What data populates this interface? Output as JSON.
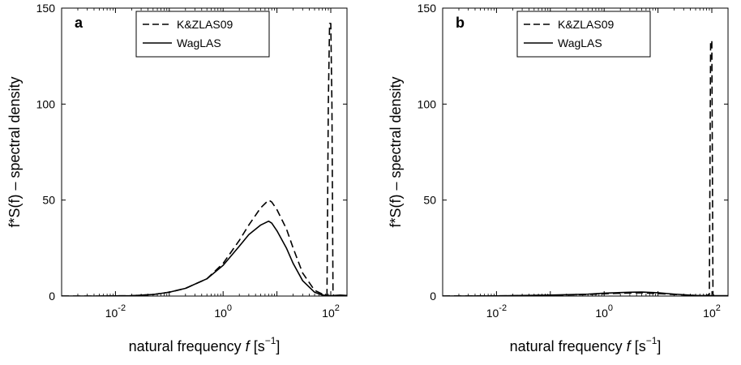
{
  "chart_data": [
    {
      "type": "line",
      "panel_label": "a",
      "x_scale": "log",
      "xlim": [
        0.001,
        200
      ],
      "ylim": [
        0,
        150
      ],
      "xticks": [
        0.01,
        1,
        100
      ],
      "xtick_labels": [
        {
          "base": "10",
          "exp": "-2"
        },
        {
          "base": "10",
          "exp": "0"
        },
        {
          "base": "10",
          "exp": "2"
        }
      ],
      "yticks": [
        0,
        50,
        100,
        150
      ],
      "ytick_labels": [
        "0",
        "50",
        "100",
        "150"
      ],
      "xlabel": {
        "main": "natural frequency ",
        "var": "f",
        "unit_open": " [s",
        "unit_exp": "−1",
        "unit_close": "]"
      },
      "ylabel": "f*S(f) – spectral density",
      "legend": {
        "position": "top-center",
        "entries": [
          "K&ZLAS09",
          "WagLAS"
        ]
      },
      "series": [
        {
          "name": "K&ZLAS09",
          "style": "dashed",
          "x": [
            0.001,
            0.005,
            0.02,
            0.05,
            0.1,
            0.2,
            0.5,
            1,
            2,
            3,
            5,
            7,
            8,
            10,
            15,
            20,
            30,
            50,
            70,
            85,
            90,
            95,
            100,
            105,
            110,
            115,
            130,
            200
          ],
          "y": [
            0,
            0,
            0.2,
            0.8,
            2,
            4,
            9,
            17,
            29,
            37,
            46,
            50,
            49,
            45,
            35,
            25,
            12,
            3,
            1,
            0.5,
            100,
            142,
            142,
            100,
            1,
            0,
            0,
            0
          ]
        },
        {
          "name": "WagLAS",
          "style": "solid",
          "x": [
            0.001,
            0.005,
            0.02,
            0.05,
            0.1,
            0.2,
            0.5,
            1,
            2,
            3,
            5,
            7,
            8,
            10,
            15,
            20,
            30,
            50,
            70,
            100,
            150,
            200
          ],
          "y": [
            0,
            0,
            0.2,
            0.8,
            2,
            4,
            9,
            16,
            26,
            32,
            37,
            39,
            38,
            34,
            25,
            17,
            8,
            2,
            0.5,
            0.2,
            0.5,
            0.3
          ]
        }
      ]
    },
    {
      "type": "line",
      "panel_label": "b",
      "x_scale": "log",
      "xlim": [
        0.001,
        200
      ],
      "ylim": [
        0,
        150
      ],
      "xticks": [
        0.01,
        1,
        100
      ],
      "xtick_labels": [
        {
          "base": "10",
          "exp": "-2"
        },
        {
          "base": "10",
          "exp": "0"
        },
        {
          "base": "10",
          "exp": "2"
        }
      ],
      "yticks": [
        0,
        50,
        100,
        150
      ],
      "ytick_labels": [
        "0",
        "50",
        "100",
        "150"
      ],
      "xlabel": {
        "main": "natural frequency ",
        "var": "f",
        "unit_open": " [s",
        "unit_exp": "−1",
        "unit_close": "]"
      },
      "ylabel": "f*S(f) – spectral density",
      "legend": {
        "position": "top-center",
        "entries": [
          "K&ZLAS09",
          "WagLAS"
        ]
      },
      "series": [
        {
          "name": "K&ZLAS09",
          "style": "dashed",
          "x": [
            0.001,
            0.01,
            0.1,
            0.5,
            1,
            3,
            5,
            10,
            20,
            50,
            80,
            90,
            95,
            100,
            105,
            110,
            120,
            200
          ],
          "y": [
            0,
            0.1,
            0.4,
            0.8,
            1.2,
            1.6,
            1.7,
            1.3,
            0.8,
            0.3,
            0.2,
            1,
            133,
            133,
            1,
            0,
            0,
            0
          ]
        },
        {
          "name": "WagLAS",
          "style": "solid",
          "x": [
            0.001,
            0.01,
            0.1,
            0.5,
            1,
            3,
            5,
            10,
            20,
            50,
            100,
            200
          ],
          "y": [
            0,
            0.1,
            0.5,
            1,
            1.5,
            2,
            2.1,
            1.7,
            1,
            0.3,
            0.2,
            0.2
          ]
        }
      ]
    }
  ]
}
